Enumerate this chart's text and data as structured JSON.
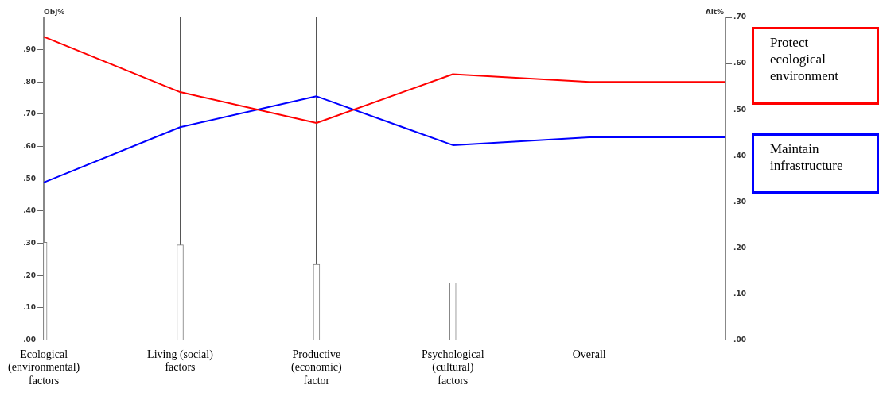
{
  "chart_data": {
    "type": "line",
    "ylabel": "Obj%",
    "y2label": "Alt%",
    "categories": [
      "Ecological (environmental) factors",
      "Living (social) factors",
      "Productive (economic) factor",
      "Psychological (cultural) factors",
      "Overall",
      null
    ],
    "series": [
      {
        "type": "bar",
        "color": "#808080",
        "values": [
          0.303,
          0.295,
          0.235,
          0.178,
          null,
          null
        ]
      },
      {
        "name": "Protect ecological environment",
        "axis": "y2",
        "color": "#ff0000",
        "values": [
          0.658,
          0.538,
          0.471,
          0.577,
          0.56,
          0.56
        ]
      },
      {
        "name": "Maintain infrastructure",
        "axis": "y2",
        "color": "#0000ff",
        "values": [
          0.342,
          0.462,
          0.529,
          0.423,
          0.44,
          0.44
        ]
      }
    ],
    "ylim": [
      0,
      1
    ],
    "yticks": [
      {
        "value": 0,
        "label": ".00"
      },
      {
        "value": 0.1,
        "label": ".10"
      },
      {
        "value": 0.2,
        "label": ".20"
      },
      {
        "value": 0.3,
        "label": ".30"
      },
      {
        "value": 0.4,
        "label": ".40"
      },
      {
        "value": 0.5,
        "label": ".50"
      },
      {
        "value": 0.6,
        "label": ".60"
      },
      {
        "value": 0.7,
        "label": ".70"
      },
      {
        "value": 0.8,
        "label": ".80"
      },
      {
        "value": 0.9,
        "label": ".90"
      }
    ],
    "y2lim": [
      0,
      0.7
    ],
    "y2ticks": [
      {
        "value": 0,
        "label": ".00"
      },
      {
        "value": 0.1,
        "label": ".10"
      },
      {
        "value": 0.2,
        "label": ".20"
      },
      {
        "value": 0.3,
        "label": ".30"
      },
      {
        "value": 0.4,
        "label": ".40"
      },
      {
        "value": 0.5,
        "label": ".50"
      },
      {
        "value": 0.6,
        "label": ".60"
      },
      {
        "value": 0.7,
        "label": ".70"
      }
    ],
    "grid": "x",
    "legend": "right",
    "marker": "none",
    "line_style": "solid"
  }
}
